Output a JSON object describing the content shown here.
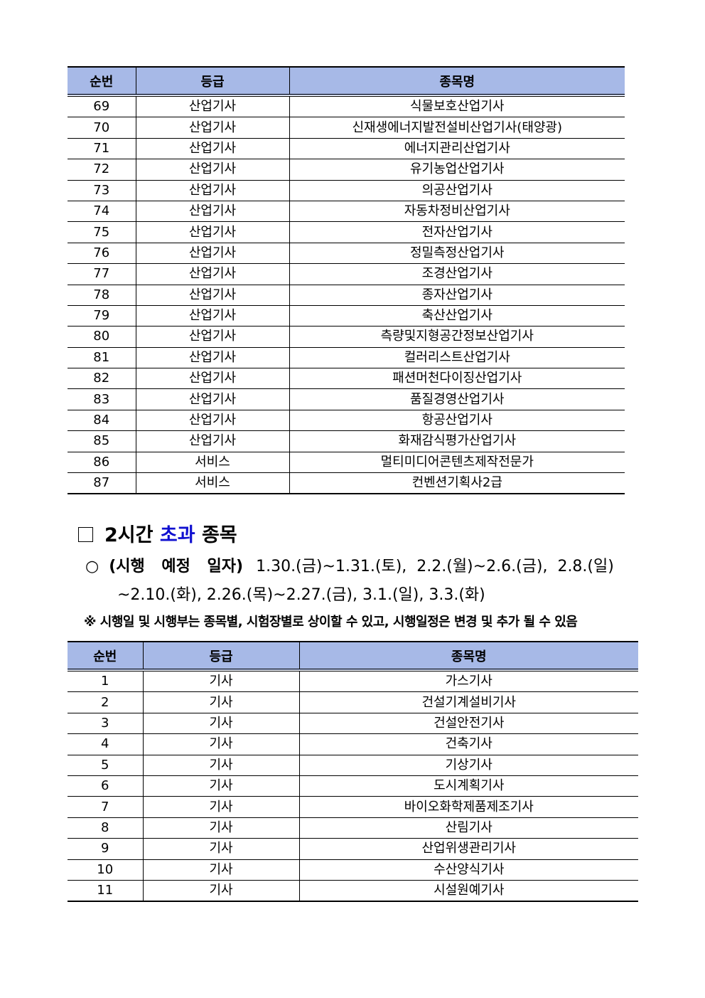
{
  "table1": {
    "headers": [
      "순번",
      "등급",
      "종목명"
    ],
    "rows": [
      [
        "69",
        "산업기사",
        "식물보호산업기사"
      ],
      [
        "70",
        "산업기사",
        "신재생에너지발전설비산업기사(태양광)"
      ],
      [
        "71",
        "산업기사",
        "에너지관리산업기사"
      ],
      [
        "72",
        "산업기사",
        "유기농업산업기사"
      ],
      [
        "73",
        "산업기사",
        "의공산업기사"
      ],
      [
        "74",
        "산업기사",
        "자동차정비산업기사"
      ],
      [
        "75",
        "산업기사",
        "전자산업기사"
      ],
      [
        "76",
        "산업기사",
        "정밀측정산업기사"
      ],
      [
        "77",
        "산업기사",
        "조경산업기사"
      ],
      [
        "78",
        "산업기사",
        "종자산업기사"
      ],
      [
        "79",
        "산업기사",
        "축산산업기사"
      ],
      [
        "80",
        "산업기사",
        "측량및지형공간정보산업기사"
      ],
      [
        "81",
        "산업기사",
        "컬러리스트산업기사"
      ],
      [
        "82",
        "산업기사",
        "패션머천다이징산업기사"
      ],
      [
        "83",
        "산업기사",
        "품질경영산업기사"
      ],
      [
        "84",
        "산업기사",
        "항공산업기사"
      ],
      [
        "85",
        "산업기사",
        "화재감식평가산업기사"
      ],
      [
        "86",
        "서비스",
        "멀티미디어콘텐츠제작전문가"
      ],
      [
        "87",
        "서비스",
        "컨벤션기획사2급"
      ]
    ]
  },
  "section": {
    "prefix": "2시간",
    "highlight": "초과",
    "suffix": "종목",
    "highlight_color": "#1010d0"
  },
  "schedule": {
    "bullet": "○",
    "label": "(시행 예정 일자)",
    "line1": "1.30.(금)~1.31.(토),  2.2.(월)~2.6.(금),  2.8.(일)",
    "line2": "~2.10.(화), 2.26.(목)~2.27.(금), 3.1.(일), 3.3.(화)"
  },
  "note": "※  시행일 및 시행부는 종목별, 시험장별로 상이할 수 있고, 시행일정은 변경 및 추가 될 수 있음",
  "table2": {
    "headers": [
      "순번",
      "등급",
      "종목명"
    ],
    "rows": [
      [
        "1",
        "기사",
        "가스기사"
      ],
      [
        "2",
        "기사",
        "건설기계설비기사"
      ],
      [
        "3",
        "기사",
        "건설안전기사"
      ],
      [
        "4",
        "기사",
        "건축기사"
      ],
      [
        "5",
        "기사",
        "기상기사"
      ],
      [
        "6",
        "기사",
        "도시계획기사"
      ],
      [
        "7",
        "기사",
        "바이오화학제품제조기사"
      ],
      [
        "8",
        "기사",
        "산림기사"
      ],
      [
        "9",
        "기사",
        "산업위생관리기사"
      ],
      [
        "10",
        "기사",
        "수산양식기사"
      ],
      [
        "11",
        "기사",
        "시설원예기사"
      ]
    ]
  },
  "colors": {
    "header_bg": "#a7b9e7"
  }
}
